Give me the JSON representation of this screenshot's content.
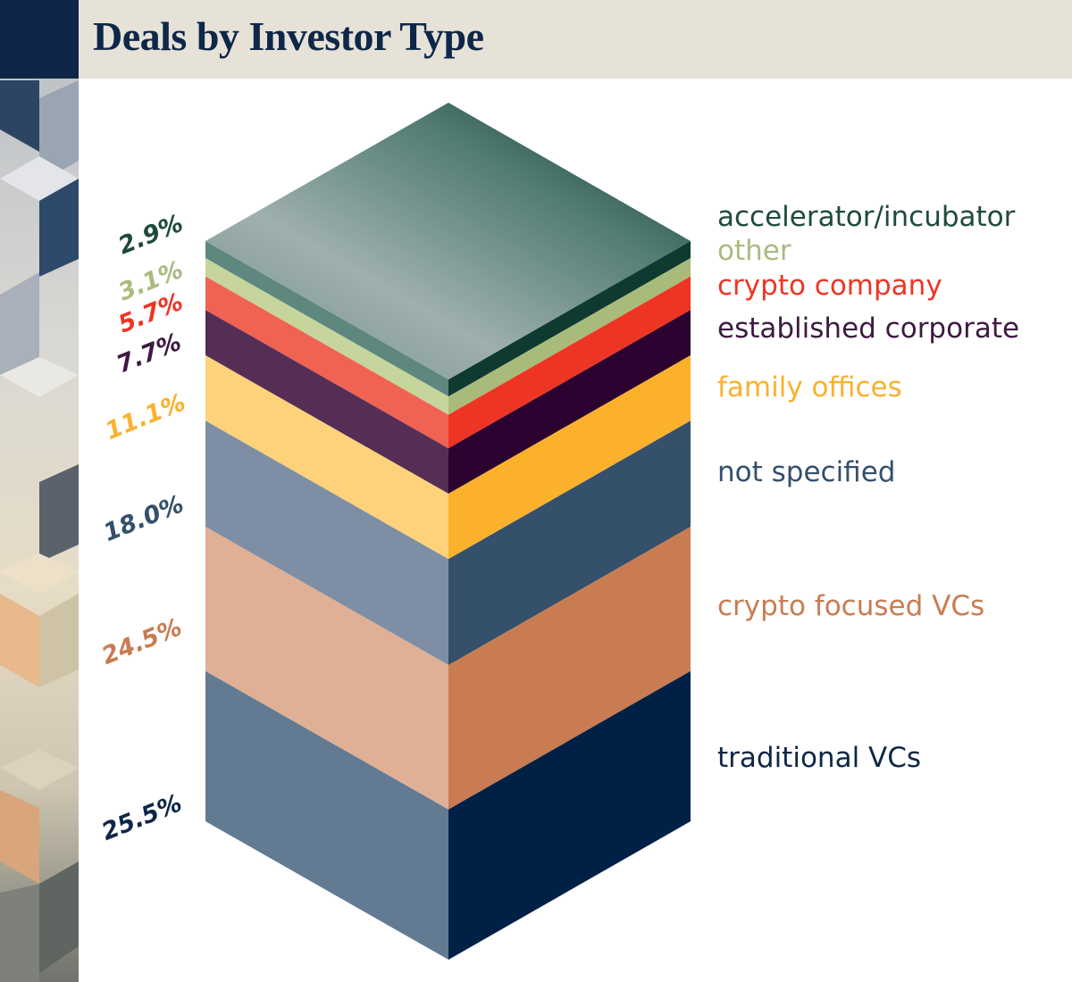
{
  "chart_data": {
    "type": "stacked-bar-3d",
    "title": "Deals by Investor Type",
    "unit": "%",
    "series": [
      {
        "name": "accelerator/incubator",
        "value": 2.9,
        "label": "2.9%",
        "color": "#1f4a3f",
        "left": "#5e877d",
        "right": "#0f3a31"
      },
      {
        "name": "other",
        "value": 3.1,
        "label": "3.1%",
        "color": "#a9bb80",
        "left": "#c5d59b",
        "right": "#a8bb7b"
      },
      {
        "name": "crypto company",
        "value": 5.7,
        "label": "5.7%",
        "color": "#ee3524",
        "left": "#f06352",
        "right": "#ee3524"
      },
      {
        "name": "established corporate",
        "value": 7.7,
        "label": "7.7%",
        "color": "#3d1a40",
        "left": "#562e55",
        "right": "#2c0230"
      },
      {
        "name": "family offices",
        "value": 11.1,
        "label": "11.1%",
        "color": "#fbb12c",
        "left": "#fdd27a",
        "right": "#fbb12c"
      },
      {
        "name": "not specified",
        "value": 18.0,
        "label": "18.0%",
        "color": "#34506b",
        "left": "#7e8fa5",
        "right": "#34506b"
      },
      {
        "name": "crypto focused VCs",
        "value": 24.5,
        "label": "24.5%",
        "color": "#c97c52",
        "left": "#e0b096",
        "right": "#c97c52"
      },
      {
        "name": "traditional VCs",
        "value": 25.5,
        "label": "25.5%",
        "color": "#0e2748",
        "left": "#637a93",
        "right": "#002145"
      }
    ]
  },
  "header": {
    "title": "Deals by Investor Type",
    "background": "#e6e2d8",
    "sidebar": "#0e2748"
  }
}
